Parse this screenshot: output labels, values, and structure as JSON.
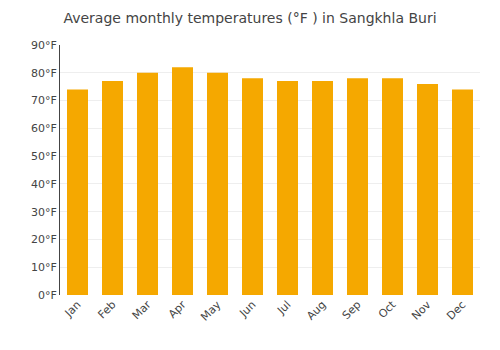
{
  "chart_data": {
    "type": "bar",
    "title": "Average monthly temperatures (°F ) in Sangkhla Buri",
    "categories": [
      "Jan",
      "Feb",
      "Mar",
      "Apr",
      "May",
      "Jun",
      "Jul",
      "Aug",
      "Sep",
      "Oct",
      "Nov",
      "Dec"
    ],
    "values": [
      74,
      77,
      80,
      82,
      80,
      78,
      77,
      77,
      78,
      78,
      76,
      74
    ],
    "color": "#F5A800",
    "ylim": [
      0,
      90
    ],
    "yticks": [
      {
        "value": 0,
        "label": "0°F"
      },
      {
        "value": 10,
        "label": "10°F"
      },
      {
        "value": 20,
        "label": "20°F"
      },
      {
        "value": 30,
        "label": "30°F"
      },
      {
        "value": 40,
        "label": "40°F"
      },
      {
        "value": 50,
        "label": "50°F"
      },
      {
        "value": 60,
        "label": "60°F"
      },
      {
        "value": 70,
        "label": "70°F"
      },
      {
        "value": 80,
        "label": "80°F"
      },
      {
        "value": 90,
        "label": "90°F"
      }
    ],
    "grid": true
  }
}
